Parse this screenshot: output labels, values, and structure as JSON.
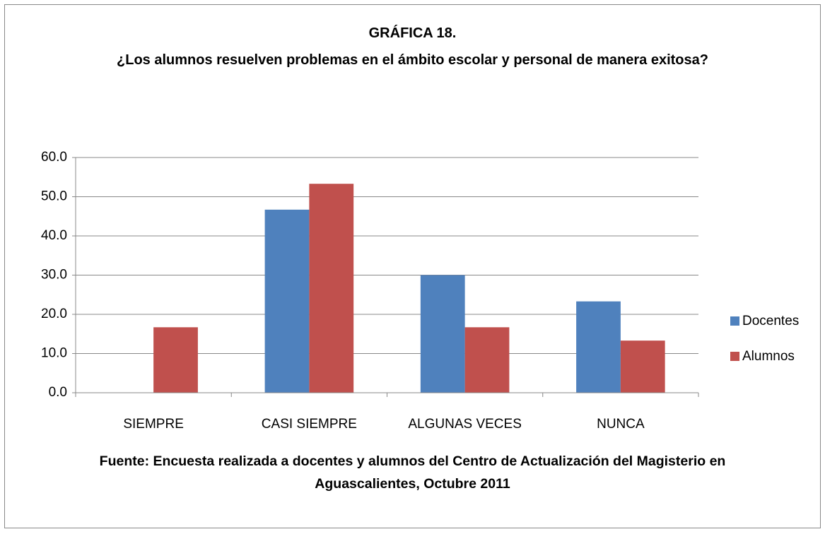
{
  "chart_data": {
    "type": "bar",
    "title": "GRÁFICA 18.",
    "subtitle": "¿Los alumnos resuelven problemas en el ámbito  escolar y personal de manera exitosa?",
    "source": "Fuente: Encuesta realizada a docentes y alumnos del Centro de Actualización del Magisterio en Aguascalientes, Octubre 2011",
    "categories": [
      "SIEMPRE",
      "CASI SIEMPRE",
      "ALGUNAS VECES",
      "NUNCA"
    ],
    "series": [
      {
        "name": "Docentes",
        "color": "#4f81bd",
        "values": [
          0,
          46.7,
          30.0,
          23.3
        ]
      },
      {
        "name": "Alumnos",
        "color": "#c0504d",
        "values": [
          16.7,
          53.3,
          16.7,
          13.3
        ]
      }
    ],
    "ylim": [
      0,
      60
    ],
    "yticks": [
      {
        "value": 0,
        "label": "0.0"
      },
      {
        "value": 10,
        "label": "10.0"
      },
      {
        "value": 20,
        "label": "20.0"
      },
      {
        "value": 30,
        "label": "30.0"
      },
      {
        "value": 40,
        "label": "40.0"
      },
      {
        "value": 50,
        "label": "50.0"
      },
      {
        "value": 60,
        "label": "60.0"
      }
    ],
    "grid": true,
    "legend": "right"
  }
}
